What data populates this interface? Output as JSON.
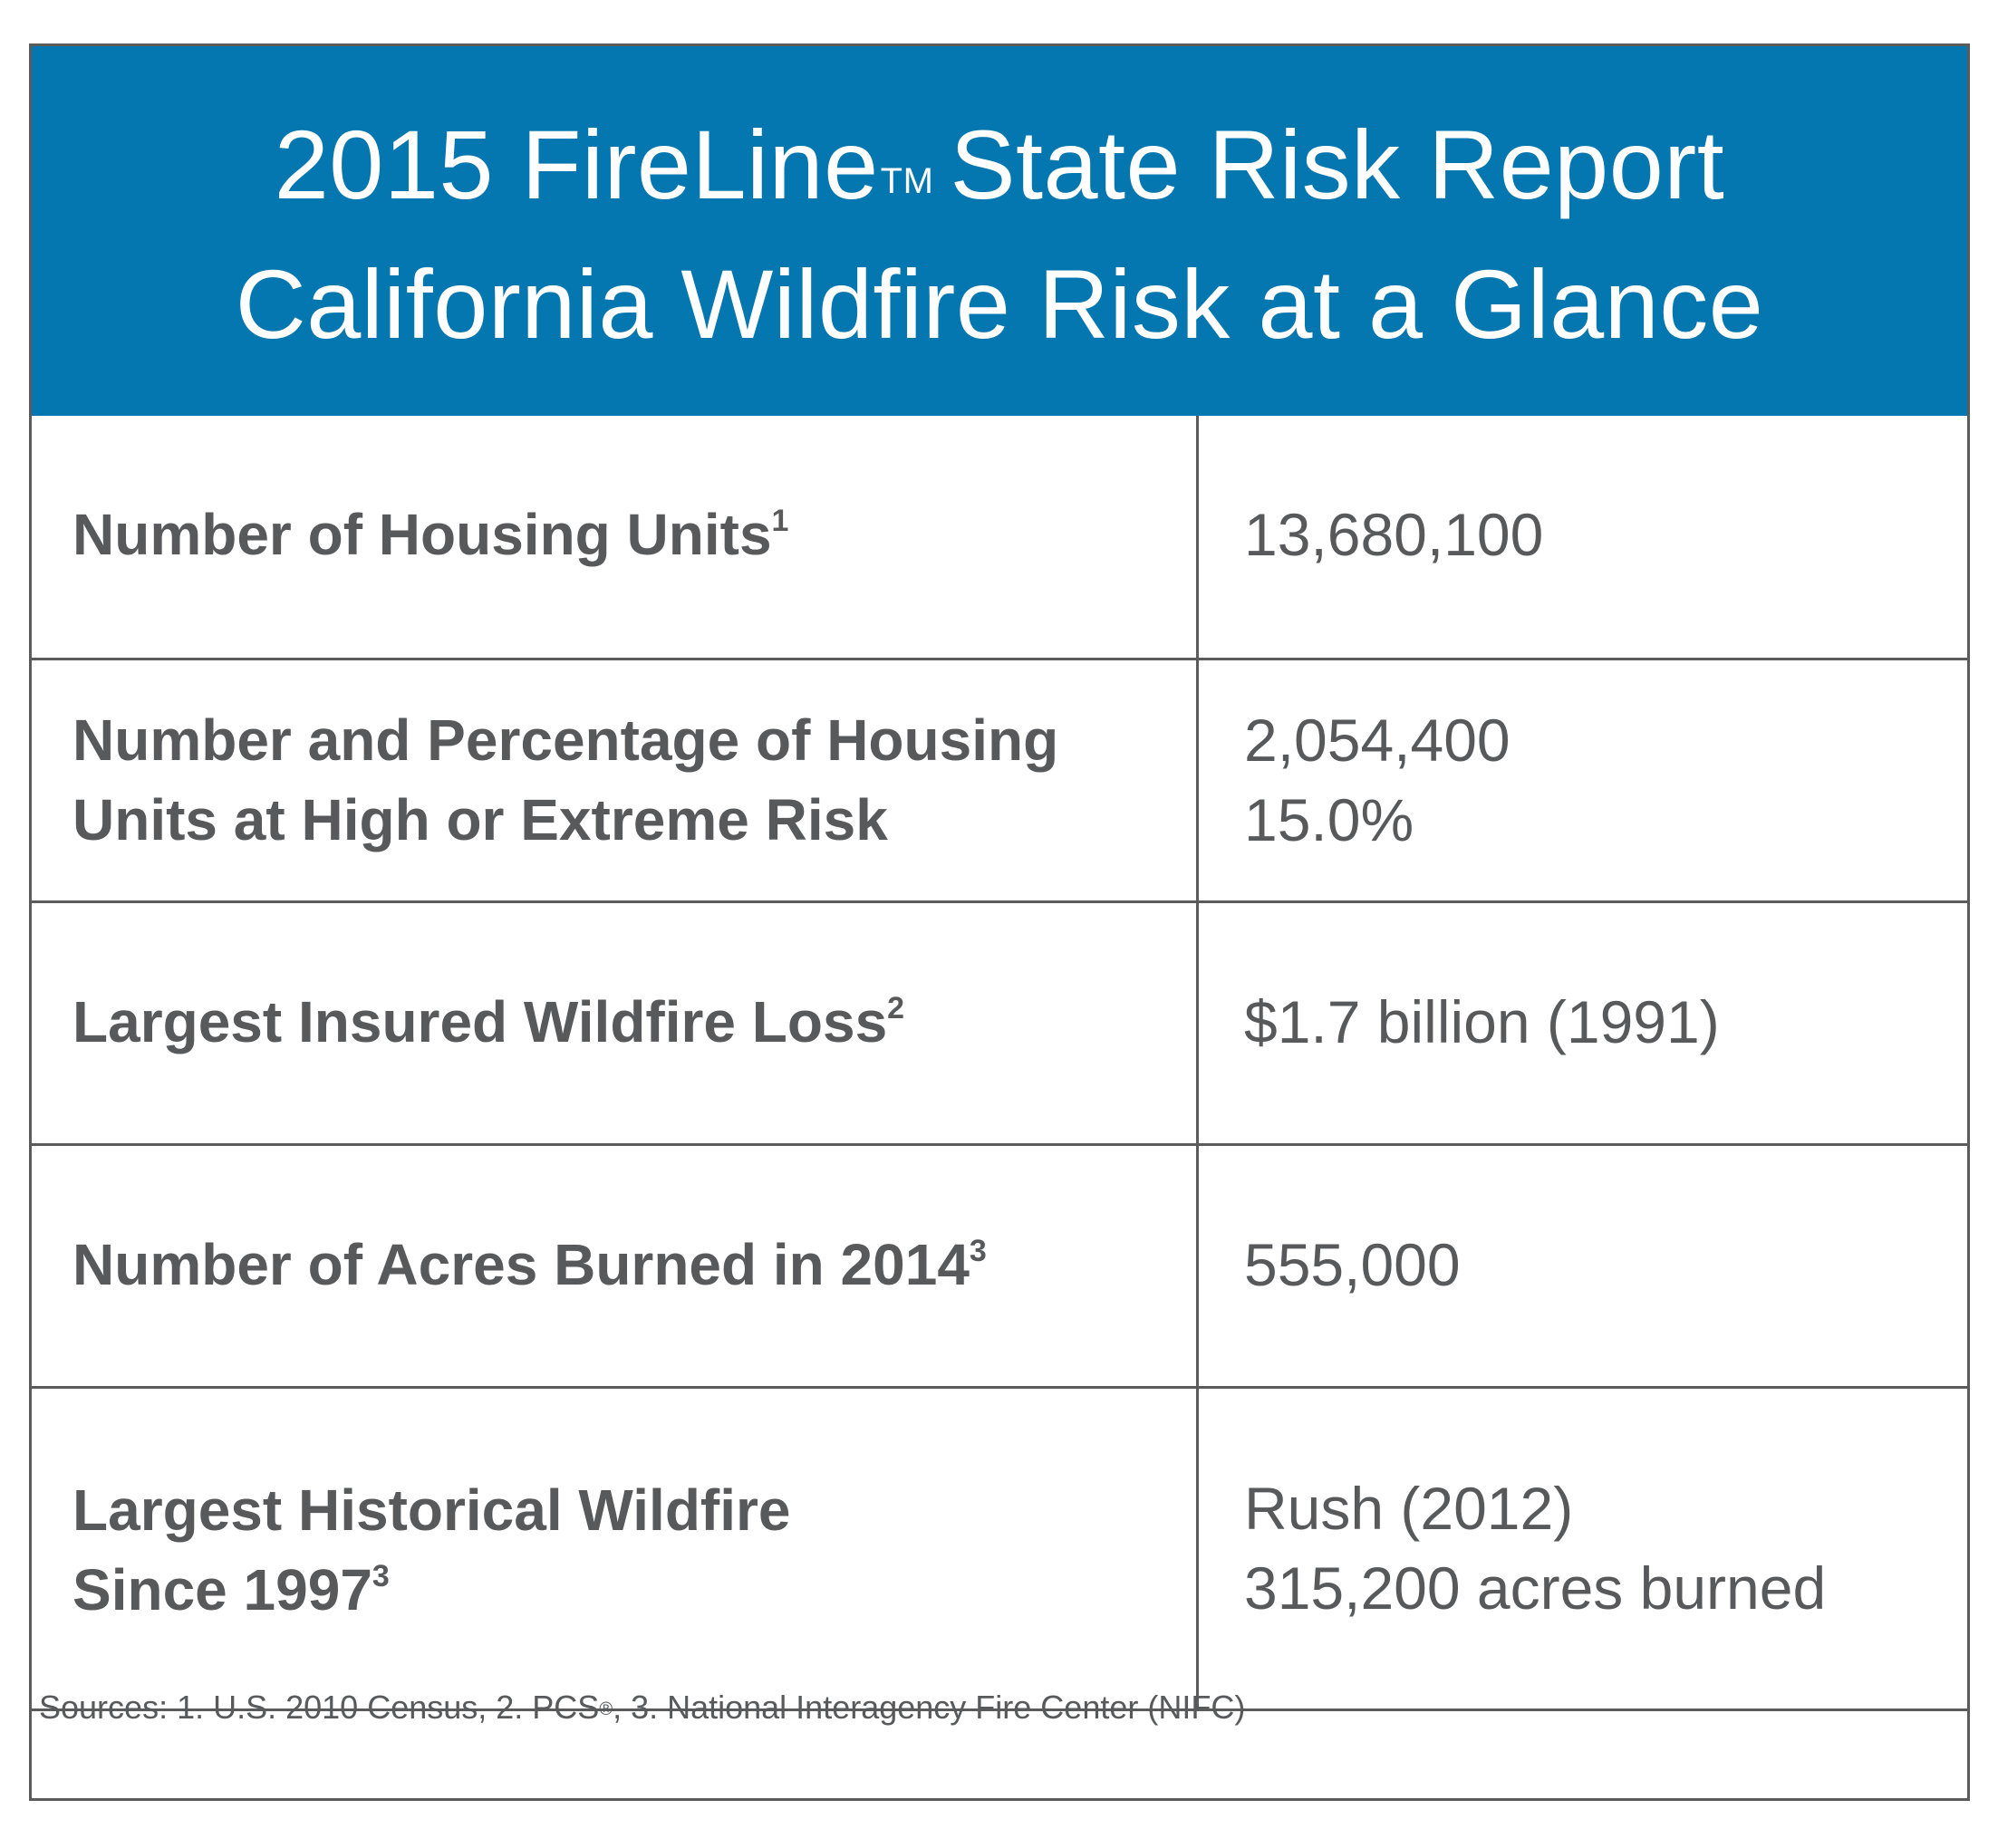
{
  "header": {
    "title_line1_part1": "2015 FireLine",
    "title_tm": "TM",
    "title_line1_part2": "State Risk Report",
    "title_line2": "California Wildfire Risk at a Glance"
  },
  "rows": [
    {
      "label_lines": [
        "Number of Housing Units"
      ],
      "label_sup": "1",
      "value_lines": [
        "13,680,100"
      ]
    },
    {
      "label_lines": [
        "Number and Percentage of Housing",
        "Units at High or Extreme Risk"
      ],
      "label_sup": "",
      "value_lines": [
        "2,054,400",
        "15.0%"
      ]
    },
    {
      "label_lines": [
        "Largest Insured Wildfire Loss"
      ],
      "label_sup": "2",
      "value_lines": [
        "$1.7 billion (1991)"
      ]
    },
    {
      "label_lines": [
        "Number of Acres Burned in 2014"
      ],
      "label_sup": "3",
      "value_lines": [
        "555,000"
      ]
    },
    {
      "label_lines": [
        "Largest Historical Wildfire",
        "Since 1997"
      ],
      "label_sup": "3",
      "value_lines": [
        "Rush (2012)",
        "315,200 acres burned"
      ]
    }
  ],
  "sources": {
    "part1": "Sources: 1. U.S. 2010 Census, 2. PCS",
    "reg_mark": "®",
    "part2": ", 3. National Interagency Fire Center (NIFC)"
  },
  "colors": {
    "header_bg": "#0477b1",
    "text": "#58595b",
    "border": "#5b5b5b"
  }
}
